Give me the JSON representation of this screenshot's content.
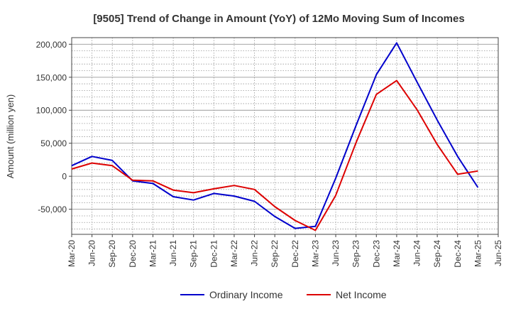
{
  "chart_data": {
    "type": "line",
    "title": "[9505]  Trend of Change in Amount (YoY) of 12Mo Moving Sum of Incomes",
    "ylabel": "Amount (million yen)",
    "xlabel": "",
    "x_ticks": [
      "Mar-20",
      "Jun-20",
      "Sep-20",
      "Dec-20",
      "Mar-21",
      "Jun-21",
      "Sep-21",
      "Dec-21",
      "Mar-22",
      "Jun-22",
      "Sep-22",
      "Dec-22",
      "Mar-23",
      "Jun-23",
      "Sep-23",
      "Dec-23",
      "Mar-24",
      "Jun-24",
      "Sep-24",
      "Dec-24",
      "Mar-25",
      "Jun-25"
    ],
    "y_ticks": [
      -50000,
      0,
      50000,
      100000,
      150000,
      200000
    ],
    "y_tick_labels": [
      "-50,000",
      "0",
      "50,000",
      "100,000",
      "150,000",
      "200,000"
    ],
    "ylim": [
      -88000,
      210000
    ],
    "grid": true,
    "legend_position": "bottom-center",
    "series": [
      {
        "name": "Ordinary Income",
        "color": "#0000cc",
        "values": [
          16000,
          30000,
          24000,
          -7000,
          -11000,
          -31000,
          -36000,
          -26000,
          -30000,
          -38000,
          -61000,
          -79000,
          -76000,
          -3000,
          77000,
          154000,
          202000,
          143000,
          85000,
          30000,
          -17000
        ]
      },
      {
        "name": "Net Income",
        "color": "#dd0000",
        "values": [
          11000,
          20000,
          16000,
          -6000,
          -7000,
          -21000,
          -25000,
          -19000,
          -14000,
          -20000,
          -46000,
          -67000,
          -82000,
          -29000,
          51000,
          124000,
          145000,
          101000,
          48000,
          3000,
          8000
        ]
      }
    ]
  }
}
